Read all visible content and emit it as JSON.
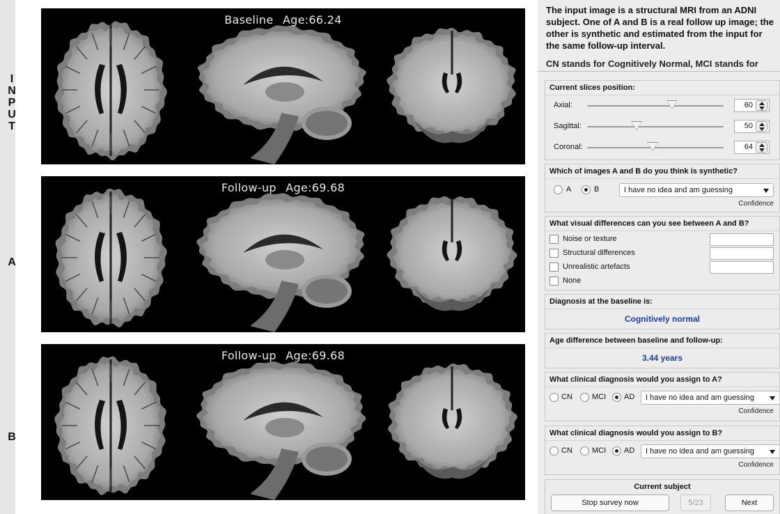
{
  "row_labels": {
    "input": [
      "I",
      "N",
      "P",
      "U",
      "T"
    ],
    "a": "A",
    "b": "B"
  },
  "panels": [
    {
      "id": "input",
      "caption_left": "Baseline",
      "caption_right": "Age:66.24"
    },
    {
      "id": "a",
      "caption_left": "Follow-up",
      "caption_right": "Age:69.68"
    },
    {
      "id": "b",
      "caption_left": "Follow-up",
      "caption_right": "Age:69.68"
    }
  ],
  "intro": {
    "text": "The input image is a structural MRI from an ADNI subject.  One of A and B is a real follow up image; the other is synthetic and estimated from the input for the same follow-up interval.",
    "cut_text": "CN stands for Cognitively Normal, MCI stands for"
  },
  "slices": {
    "title": "Current slices position:",
    "axial": {
      "label": "Axial:",
      "value": "60",
      "fraction": 0.62
    },
    "sagittal": {
      "label": "Sagittal:",
      "value": "50",
      "fraction": 0.36
    },
    "coronal": {
      "label": "Coronal:",
      "value": "64",
      "fraction": 0.48
    }
  },
  "synthetic_q": {
    "title": "Which of images A and B do you think is synthetic?",
    "option_a": "A",
    "option_b": "B",
    "selected": "B",
    "confidence_value": "I have no idea and am guessing",
    "confidence_label": "Confidence"
  },
  "visual_q": {
    "title": "What visual differences can you see between A and B?",
    "options": [
      "Noise or texture",
      "Structural differences",
      "Unrealistic artefacts",
      "None"
    ]
  },
  "diagnosis": {
    "title": "Diagnosis at the baseline is:",
    "value": "Cognitively normal"
  },
  "age_diff": {
    "title": "Age difference between baseline and follow-up:",
    "value": "3.44 years"
  },
  "diag_a": {
    "title": "What clinical diagnosis would you assign to A?",
    "cn": "CN",
    "mci": "MCI",
    "ad": "AD",
    "selected": "AD",
    "confidence_value": "I have no idea and am guessing",
    "confidence_label": "Confidence"
  },
  "diag_b": {
    "title": "What clinical diagnosis would you assign to B?",
    "cn": "CN",
    "mci": "MCI",
    "ad": "AD",
    "selected": "AD",
    "confidence_value": "I have no idea and am guessing",
    "confidence_label": "Confidence"
  },
  "subject": {
    "title": "Current subject",
    "stop_label": "Stop survey now",
    "counter": "5/23",
    "next_label": "Next"
  },
  "colors": {
    "accent_blue": "#1f3f97",
    "panel_bg": "#000000",
    "sidebar_bg": "#ececec"
  }
}
